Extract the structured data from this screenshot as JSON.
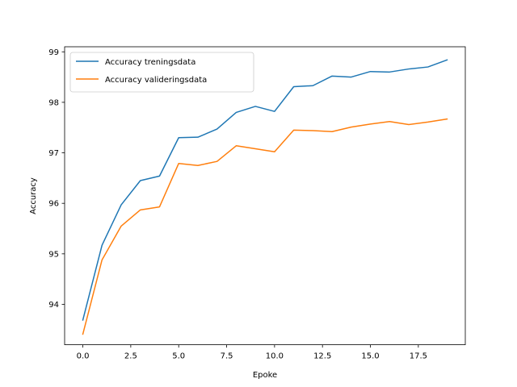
{
  "chart_data": {
    "type": "line",
    "title": "",
    "xlabel": "Epoke",
    "ylabel": "Accuracy",
    "xlim": [
      -0.95,
      19.95
    ],
    "ylim": [
      93.2,
      99.1
    ],
    "xticks": [
      0,
      2.5,
      5,
      7.5,
      10,
      12.5,
      15,
      17.5
    ],
    "xtick_labels": [
      "0.0",
      "2.5",
      "5.0",
      "7.5",
      "10.0",
      "12.5",
      "15.0",
      "17.5"
    ],
    "yticks": [
      94,
      95,
      96,
      97,
      98,
      99
    ],
    "ytick_labels": [
      "94",
      "95",
      "96",
      "97",
      "98",
      "99"
    ],
    "grid": false,
    "legend_position": "top-left",
    "x": [
      0,
      1,
      2,
      3,
      4,
      5,
      6,
      7,
      8,
      9,
      10,
      11,
      12,
      13,
      14,
      15,
      16,
      17,
      18,
      19
    ],
    "series": [
      {
        "name": "Accuracy treningsdata",
        "color": "#1f77b4",
        "values": [
          93.69,
          95.17,
          95.97,
          96.45,
          96.54,
          97.3,
          97.31,
          97.47,
          97.8,
          97.92,
          97.82,
          98.31,
          98.33,
          98.52,
          98.5,
          98.61,
          98.6,
          98.66,
          98.7,
          98.84
        ]
      },
      {
        "name": "Accuracy valideringsdata",
        "color": "#ff7f0e",
        "values": [
          93.41,
          94.88,
          95.55,
          95.87,
          95.93,
          96.79,
          96.75,
          96.83,
          97.14,
          97.08,
          97.02,
          97.45,
          97.44,
          97.42,
          97.51,
          97.57,
          97.62,
          97.56,
          97.61,
          97.67
        ]
      }
    ]
  }
}
